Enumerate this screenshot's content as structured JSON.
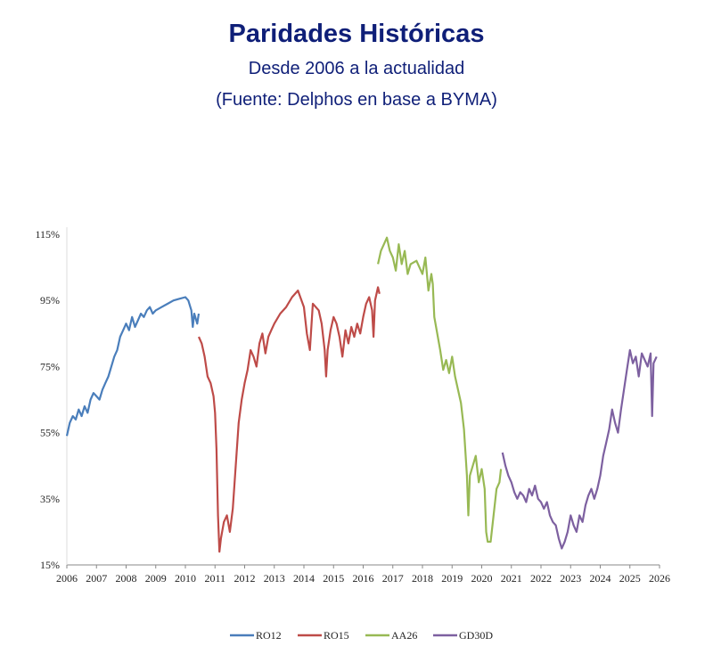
{
  "title": "Paridades Históricas",
  "subtitle": "Desde 2006 a la actualidad",
  "source": "(Fuente: Delphos en base a BYMA)",
  "chart_data": {
    "type": "line",
    "xlim": [
      2006,
      2026
    ],
    "ylim": [
      15,
      115
    ],
    "y_ticks": [
      115,
      95,
      75,
      55,
      35,
      15
    ],
    "y_tick_labels": [
      "115%",
      "95%",
      "75%",
      "55%",
      "35%",
      "15%"
    ],
    "x_tick_labels": [
      "2006",
      "2007",
      "2008",
      "2009",
      "2010",
      "2011",
      "2012",
      "2013",
      "2014",
      "2015",
      "2016",
      "2017",
      "2018",
      "2019",
      "2020",
      "2021",
      "2022",
      "2023",
      "2024",
      "2025",
      "2026"
    ],
    "grid": false,
    "legend_position": "bottom",
    "series": [
      {
        "name": "RO12",
        "color": "#4a7ebb",
        "points": [
          [
            2006.0,
            54
          ],
          [
            2006.1,
            58
          ],
          [
            2006.2,
            60
          ],
          [
            2006.3,
            59
          ],
          [
            2006.4,
            62
          ],
          [
            2006.5,
            60
          ],
          [
            2006.6,
            63
          ],
          [
            2006.7,
            61
          ],
          [
            2006.8,
            65
          ],
          [
            2006.9,
            67
          ],
          [
            2007.0,
            66
          ],
          [
            2007.1,
            65
          ],
          [
            2007.2,
            68
          ],
          [
            2007.3,
            70
          ],
          [
            2007.4,
            72
          ],
          [
            2007.5,
            75
          ],
          [
            2007.6,
            78
          ],
          [
            2007.7,
            80
          ],
          [
            2007.8,
            84
          ],
          [
            2007.9,
            86
          ],
          [
            2008.0,
            88
          ],
          [
            2008.1,
            86
          ],
          [
            2008.2,
            90
          ],
          [
            2008.3,
            87
          ],
          [
            2008.4,
            89
          ],
          [
            2008.5,
            91
          ],
          [
            2008.6,
            90
          ],
          [
            2008.7,
            92
          ],
          [
            2008.8,
            93
          ],
          [
            2008.9,
            91
          ],
          [
            2009.0,
            92
          ],
          [
            2009.2,
            93
          ],
          [
            2009.4,
            94
          ],
          [
            2009.6,
            95
          ],
          [
            2009.8,
            95.5
          ],
          [
            2010.0,
            96
          ],
          [
            2010.1,
            95
          ],
          [
            2010.2,
            92
          ],
          [
            2010.25,
            87
          ],
          [
            2010.3,
            91
          ],
          [
            2010.4,
            88
          ],
          [
            2010.45,
            91
          ]
        ]
      },
      {
        "name": "RO15",
        "color": "#be4b48",
        "points": [
          [
            2010.45,
            84
          ],
          [
            2010.55,
            82
          ],
          [
            2010.65,
            78
          ],
          [
            2010.75,
            72
          ],
          [
            2010.85,
            70
          ],
          [
            2010.95,
            66
          ],
          [
            2011.0,
            61
          ],
          [
            2011.05,
            50
          ],
          [
            2011.1,
            30
          ],
          [
            2011.15,
            19
          ],
          [
            2011.2,
            23
          ],
          [
            2011.3,
            28
          ],
          [
            2011.4,
            30
          ],
          [
            2011.5,
            25
          ],
          [
            2011.6,
            32
          ],
          [
            2011.7,
            45
          ],
          [
            2011.8,
            58
          ],
          [
            2011.9,
            65
          ],
          [
            2012.0,
            70
          ],
          [
            2012.1,
            74
          ],
          [
            2012.2,
            80
          ],
          [
            2012.3,
            78
          ],
          [
            2012.4,
            75
          ],
          [
            2012.5,
            82
          ],
          [
            2012.6,
            85
          ],
          [
            2012.7,
            79
          ],
          [
            2012.8,
            84
          ],
          [
            2012.9,
            86
          ],
          [
            2013.0,
            88
          ],
          [
            2013.2,
            91
          ],
          [
            2013.4,
            93
          ],
          [
            2013.6,
            96
          ],
          [
            2013.8,
            98
          ],
          [
            2014.0,
            93
          ],
          [
            2014.1,
            85
          ],
          [
            2014.2,
            80
          ],
          [
            2014.3,
            94
          ],
          [
            2014.5,
            92
          ],
          [
            2014.6,
            88
          ],
          [
            2014.7,
            80
          ],
          [
            2014.75,
            72
          ],
          [
            2014.8,
            80
          ],
          [
            2014.9,
            86
          ],
          [
            2015.0,
            90
          ],
          [
            2015.1,
            88
          ],
          [
            2015.2,
            84
          ],
          [
            2015.3,
            78
          ],
          [
            2015.4,
            86
          ],
          [
            2015.5,
            82
          ],
          [
            2015.6,
            87
          ],
          [
            2015.7,
            84
          ],
          [
            2015.8,
            88
          ],
          [
            2015.9,
            85
          ],
          [
            2016.0,
            90
          ],
          [
            2016.1,
            94
          ],
          [
            2016.2,
            96
          ],
          [
            2016.3,
            92
          ],
          [
            2016.35,
            84
          ],
          [
            2016.4,
            95
          ],
          [
            2016.5,
            99
          ],
          [
            2016.55,
            97
          ]
        ]
      },
      {
        "name": "AA26",
        "color": "#98b954",
        "points": [
          [
            2016.5,
            106
          ],
          [
            2016.6,
            110
          ],
          [
            2016.7,
            112
          ],
          [
            2016.8,
            114
          ],
          [
            2016.9,
            110
          ],
          [
            2017.0,
            108
          ],
          [
            2017.1,
            104
          ],
          [
            2017.2,
            112
          ],
          [
            2017.3,
            106
          ],
          [
            2017.4,
            110
          ],
          [
            2017.5,
            103
          ],
          [
            2017.6,
            106
          ],
          [
            2017.8,
            107
          ],
          [
            2018.0,
            103
          ],
          [
            2018.1,
            108
          ],
          [
            2018.2,
            98
          ],
          [
            2018.3,
            103
          ],
          [
            2018.35,
            100
          ],
          [
            2018.4,
            90
          ],
          [
            2018.5,
            85
          ],
          [
            2018.6,
            80
          ],
          [
            2018.7,
            74
          ],
          [
            2018.8,
            77
          ],
          [
            2018.9,
            73
          ],
          [
            2019.0,
            78
          ],
          [
            2019.1,
            72
          ],
          [
            2019.2,
            68
          ],
          [
            2019.3,
            64
          ],
          [
            2019.4,
            56
          ],
          [
            2019.5,
            42
          ],
          [
            2019.55,
            30
          ],
          [
            2019.6,
            42
          ],
          [
            2019.7,
            45
          ],
          [
            2019.8,
            48
          ],
          [
            2019.9,
            40
          ],
          [
            2020.0,
            44
          ],
          [
            2020.1,
            38
          ],
          [
            2020.15,
            25
          ],
          [
            2020.2,
            22
          ],
          [
            2020.3,
            22
          ],
          [
            2020.4,
            30
          ],
          [
            2020.5,
            38
          ],
          [
            2020.6,
            40
          ],
          [
            2020.65,
            44
          ]
        ]
      },
      {
        "name": "GD30D",
        "color": "#7d60a0",
        "points": [
          [
            2020.7,
            49
          ],
          [
            2020.8,
            45
          ],
          [
            2020.9,
            42
          ],
          [
            2021.0,
            40
          ],
          [
            2021.1,
            37
          ],
          [
            2021.2,
            35
          ],
          [
            2021.3,
            37
          ],
          [
            2021.4,
            36
          ],
          [
            2021.5,
            34
          ],
          [
            2021.6,
            38
          ],
          [
            2021.7,
            36
          ],
          [
            2021.8,
            39
          ],
          [
            2021.9,
            35
          ],
          [
            2022.0,
            34
          ],
          [
            2022.1,
            32
          ],
          [
            2022.2,
            34
          ],
          [
            2022.3,
            30
          ],
          [
            2022.4,
            28
          ],
          [
            2022.5,
            27
          ],
          [
            2022.6,
            23
          ],
          [
            2022.7,
            20
          ],
          [
            2022.8,
            22
          ],
          [
            2022.9,
            25
          ],
          [
            2023.0,
            30
          ],
          [
            2023.1,
            27
          ],
          [
            2023.2,
            25
          ],
          [
            2023.3,
            30
          ],
          [
            2023.4,
            28
          ],
          [
            2023.5,
            33
          ],
          [
            2023.6,
            36
          ],
          [
            2023.7,
            38
          ],
          [
            2023.8,
            35
          ],
          [
            2023.9,
            38
          ],
          [
            2024.0,
            42
          ],
          [
            2024.1,
            48
          ],
          [
            2024.2,
            52
          ],
          [
            2024.3,
            56
          ],
          [
            2024.4,
            62
          ],
          [
            2024.5,
            58
          ],
          [
            2024.6,
            55
          ],
          [
            2024.7,
            62
          ],
          [
            2024.8,
            68
          ],
          [
            2024.9,
            74
          ],
          [
            2025.0,
            80
          ],
          [
            2025.1,
            76
          ],
          [
            2025.2,
            78
          ],
          [
            2025.3,
            72
          ],
          [
            2025.4,
            79
          ],
          [
            2025.5,
            77
          ],
          [
            2025.6,
            75
          ],
          [
            2025.7,
            79
          ],
          [
            2025.75,
            60
          ],
          [
            2025.8,
            76
          ],
          [
            2025.9,
            78
          ]
        ]
      }
    ]
  }
}
